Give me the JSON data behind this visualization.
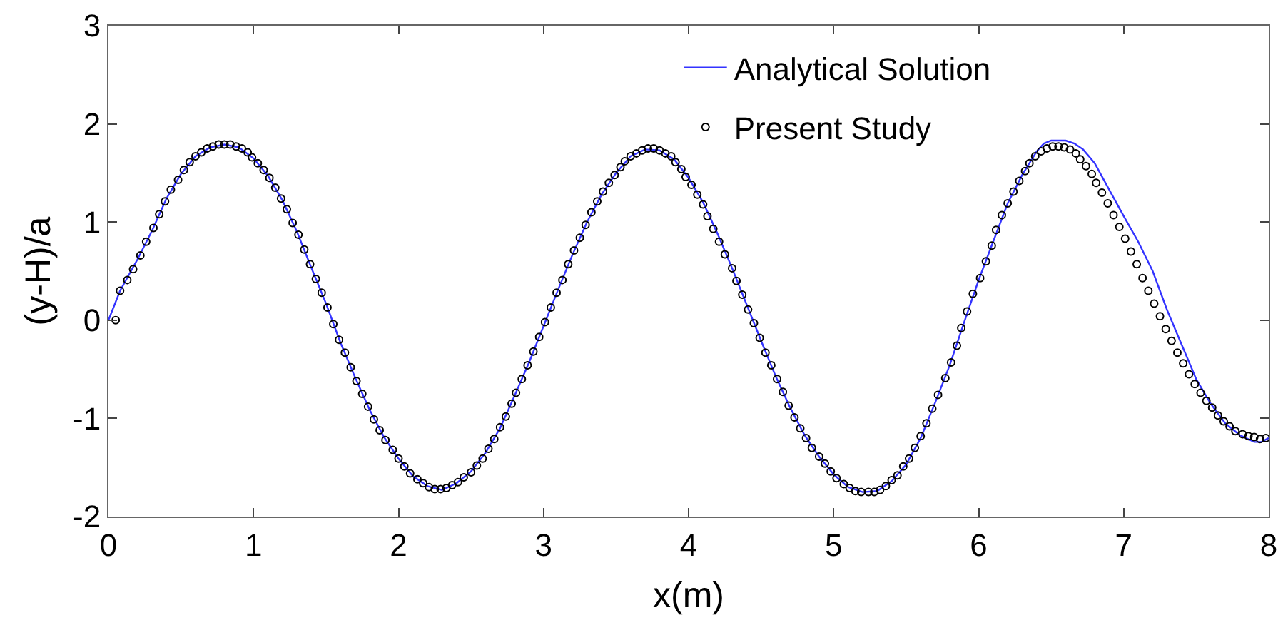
{
  "chart_data": {
    "type": "scatter",
    "xlabel": "x(m)",
    "ylabel": "(y-H)/a",
    "xlim": [
      0,
      8
    ],
    "ylim": [
      -2,
      3
    ],
    "xticks": [
      0,
      1,
      2,
      3,
      4,
      5,
      6,
      7,
      8
    ],
    "yticks": [
      -2,
      -1,
      0,
      1,
      2,
      3
    ],
    "legend": "top right",
    "series": [
      {
        "name": "Analytical Solution",
        "type": "line",
        "color": "#3333ff",
        "line_style": "solid",
        "x": [
          0,
          0.08,
          0.2,
          0.3,
          0.4,
          0.5,
          0.6,
          0.7,
          0.8,
          0.9,
          1.0,
          1.1,
          1.2,
          1.3,
          1.4,
          1.5,
          1.6,
          1.7,
          1.8,
          1.9,
          2.0,
          2.1,
          2.2,
          2.3,
          2.4,
          2.5,
          2.6,
          2.7,
          2.8,
          2.9,
          3.0,
          3.1,
          3.2,
          3.3,
          3.4,
          3.5,
          3.6,
          3.7,
          3.8,
          3.9,
          4.0,
          4.1,
          4.2,
          4.3,
          4.4,
          4.5,
          4.6,
          4.7,
          4.8,
          4.9,
          5.0,
          5.1,
          5.2,
          5.3,
          5.4,
          5.5,
          5.6,
          5.7,
          5.8,
          5.9,
          6.0,
          6.1,
          6.2,
          6.3,
          6.4,
          6.45,
          6.5,
          6.6,
          6.66,
          6.72,
          6.8,
          6.9,
          7.0,
          7.1,
          7.2,
          7.3,
          7.4,
          7.5,
          7.6,
          7.7,
          7.8,
          7.9,
          7.95,
          8.0
        ],
        "values": [
          0,
          0.3,
          0.62,
          0.91,
          1.24,
          1.49,
          1.67,
          1.76,
          1.79,
          1.76,
          1.65,
          1.47,
          1.22,
          0.9,
          0.53,
          0.17,
          -0.23,
          -0.58,
          -0.91,
          -1.19,
          -1.41,
          -1.59,
          -1.69,
          -1.73,
          -1.66,
          -1.54,
          -1.35,
          -1.1,
          -0.77,
          -0.43,
          -0.06,
          0.31,
          0.67,
          1.0,
          1.28,
          1.5,
          1.67,
          1.74,
          1.73,
          1.64,
          1.45,
          1.2,
          0.88,
          0.53,
          0.16,
          -0.21,
          -0.57,
          -0.89,
          -1.17,
          -1.39,
          -1.57,
          -1.7,
          -1.75,
          -1.74,
          -1.64,
          -1.47,
          -1.2,
          -0.84,
          -0.46,
          -0.02,
          0.41,
          0.8,
          1.19,
          1.48,
          1.72,
          1.8,
          1.83,
          1.83,
          1.8,
          1.74,
          1.6,
          1.33,
          1.06,
          0.8,
          0.5,
          0.1,
          -0.25,
          -0.6,
          -0.85,
          -1.05,
          -1.17,
          -1.24,
          -1.24,
          -1.2
        ]
      },
      {
        "name": "Present Study",
        "color": "#000000",
        "marker": "circle",
        "x": [
          0.05,
          0.08,
          0.13,
          0.17,
          0.22,
          0.26,
          0.31,
          0.35,
          0.39,
          0.43,
          0.48,
          0.52,
          0.56,
          0.6,
          0.64,
          0.68,
          0.72,
          0.76,
          0.8,
          0.84,
          0.88,
          0.92,
          0.96,
          0.99,
          1.03,
          1.07,
          1.11,
          1.15,
          1.19,
          1.23,
          1.27,
          1.31,
          1.35,
          1.39,
          1.43,
          1.47,
          1.51,
          1.55,
          1.59,
          1.63,
          1.67,
          1.71,
          1.75,
          1.79,
          1.83,
          1.87,
          1.91,
          1.96,
          2.0,
          2.04,
          2.08,
          2.13,
          2.17,
          2.21,
          2.25,
          2.29,
          2.33,
          2.37,
          2.41,
          2.45,
          2.5,
          2.54,
          2.58,
          2.62,
          2.66,
          2.7,
          2.74,
          2.78,
          2.81,
          2.85,
          2.89,
          2.93,
          2.97,
          3.01,
          3.05,
          3.09,
          3.13,
          3.17,
          3.21,
          3.25,
          3.29,
          3.33,
          3.37,
          3.41,
          3.45,
          3.49,
          3.53,
          3.56,
          3.6,
          3.64,
          3.68,
          3.72,
          3.76,
          3.8,
          3.84,
          3.88,
          3.91,
          3.95,
          3.98,
          4.02,
          4.06,
          4.1,
          4.13,
          4.17,
          4.21,
          4.25,
          4.3,
          4.33,
          4.37,
          4.41,
          4.45,
          4.49,
          4.53,
          4.57,
          4.61,
          4.65,
          4.69,
          4.73,
          4.77,
          4.81,
          4.85,
          4.9,
          4.94,
          4.98,
          5.02,
          5.07,
          5.11,
          5.15,
          5.19,
          5.24,
          5.28,
          5.32,
          5.36,
          5.4,
          5.44,
          5.48,
          5.52,
          5.56,
          5.6,
          5.64,
          5.68,
          5.72,
          5.77,
          5.81,
          5.85,
          5.88,
          5.92,
          5.96,
          6.01,
          6.05,
          6.09,
          6.12,
          6.16,
          6.2,
          6.24,
          6.28,
          6.32,
          6.35,
          6.39,
          6.43,
          6.47,
          6.51,
          6.55,
          6.59,
          6.63,
          6.67,
          6.7,
          6.74,
          6.78,
          6.81,
          6.85,
          6.89,
          6.93,
          6.97,
          7.01,
          7.05,
          7.09,
          7.13,
          7.17,
          7.21,
          7.25,
          7.29,
          7.33,
          7.37,
          7.41,
          7.45,
          7.49,
          7.53,
          7.57,
          7.61,
          7.65,
          7.69,
          7.73,
          7.77,
          7.82,
          7.86,
          7.9,
          7.94,
          7.98
        ],
        "values": [
          0.0,
          0.3,
          0.41,
          0.52,
          0.66,
          0.8,
          0.94,
          1.08,
          1.21,
          1.33,
          1.43,
          1.53,
          1.61,
          1.67,
          1.71,
          1.75,
          1.77,
          1.79,
          1.79,
          1.79,
          1.77,
          1.75,
          1.71,
          1.66,
          1.6,
          1.53,
          1.45,
          1.35,
          1.24,
          1.13,
          0.99,
          0.87,
          0.72,
          0.57,
          0.42,
          0.28,
          0.13,
          -0.04,
          -0.2,
          -0.33,
          -0.48,
          -0.62,
          -0.75,
          -0.88,
          -1.01,
          -1.12,
          -1.22,
          -1.32,
          -1.41,
          -1.49,
          -1.56,
          -1.62,
          -1.66,
          -1.7,
          -1.72,
          -1.72,
          -1.71,
          -1.68,
          -1.65,
          -1.6,
          -1.55,
          -1.48,
          -1.41,
          -1.31,
          -1.21,
          -1.09,
          -0.98,
          -0.85,
          -0.74,
          -0.6,
          -0.46,
          -0.32,
          -0.17,
          -0.02,
          0.13,
          0.28,
          0.41,
          0.57,
          0.71,
          0.84,
          0.97,
          1.1,
          1.21,
          1.31,
          1.4,
          1.48,
          1.56,
          1.62,
          1.67,
          1.7,
          1.73,
          1.75,
          1.75,
          1.73,
          1.7,
          1.67,
          1.61,
          1.54,
          1.46,
          1.38,
          1.28,
          1.18,
          1.06,
          0.93,
          0.8,
          0.67,
          0.53,
          0.4,
          0.26,
          0.11,
          -0.03,
          -0.18,
          -0.33,
          -0.46,
          -0.6,
          -0.73,
          -0.87,
          -0.99,
          -1.1,
          -1.2,
          -1.3,
          -1.39,
          -1.46,
          -1.54,
          -1.61,
          -1.67,
          -1.71,
          -1.74,
          -1.75,
          -1.75,
          -1.75,
          -1.73,
          -1.69,
          -1.63,
          -1.58,
          -1.49,
          -1.41,
          -1.3,
          -1.18,
          -1.05,
          -0.9,
          -0.76,
          -0.59,
          -0.43,
          -0.26,
          -0.08,
          0.09,
          0.27,
          0.43,
          0.6,
          0.76,
          0.92,
          1.07,
          1.19,
          1.31,
          1.42,
          1.52,
          1.6,
          1.67,
          1.72,
          1.75,
          1.77,
          1.77,
          1.76,
          1.74,
          1.7,
          1.64,
          1.57,
          1.49,
          1.4,
          1.3,
          1.19,
          1.07,
          0.95,
          0.83,
          0.7,
          0.57,
          0.43,
          0.3,
          0.17,
          0.04,
          -0.09,
          -0.21,
          -0.33,
          -0.44,
          -0.55,
          -0.65,
          -0.74,
          -0.82,
          -0.89,
          -0.97,
          -1.03,
          -1.08,
          -1.13,
          -1.16,
          -1.18,
          -1.19,
          -1.21,
          -1.2
        ]
      }
    ]
  }
}
